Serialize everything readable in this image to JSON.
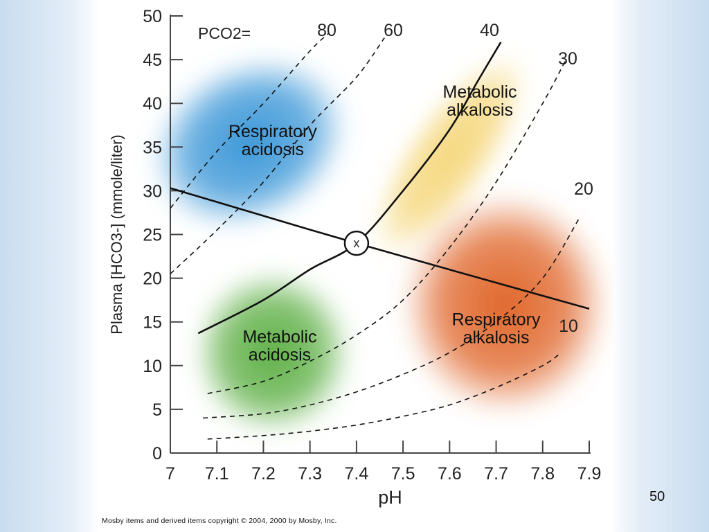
{
  "slide": {
    "number": "50",
    "copyright": "Mosby items and derived items copyright © 2004, 2000 by Mosby, Inc."
  },
  "chart_data": {
    "type": "line",
    "xlabel": "pH",
    "ylabel": "Plasma [HCO3-] (mmole/liter)",
    "xlim": [
      7.0,
      7.9
    ],
    "ylim": [
      0,
      50
    ],
    "xticks": [
      "7",
      "7.1",
      "7.2",
      "7.3",
      "7.4",
      "7.5",
      "7.6",
      "7.7",
      "7.8",
      "7.9"
    ],
    "yticks": [
      "0",
      "5",
      "10",
      "15",
      "20",
      "25",
      "30",
      "35",
      "40",
      "45",
      "50"
    ],
    "pco2_prefix": "PCO2=",
    "isobars": [
      {
        "name": "80",
        "style": "dashed",
        "points": [
          [
            7.0,
            28
          ],
          [
            7.1,
            34.5
          ],
          [
            7.2,
            40
          ],
          [
            7.3,
            46
          ],
          [
            7.34,
            48
          ]
        ]
      },
      {
        "name": "60",
        "style": "dashed",
        "points": [
          [
            7.0,
            20.5
          ],
          [
            7.1,
            25.5
          ],
          [
            7.2,
            31
          ],
          [
            7.3,
            37.5
          ],
          [
            7.4,
            43
          ],
          [
            7.46,
            47.5
          ]
        ]
      },
      {
        "name": "40",
        "style": "solid",
        "points": [
          [
            7.06,
            13.7
          ],
          [
            7.2,
            17.5
          ],
          [
            7.3,
            21
          ],
          [
            7.4,
            24
          ],
          [
            7.5,
            30
          ],
          [
            7.6,
            37
          ],
          [
            7.66,
            42.5
          ],
          [
            7.71,
            47
          ]
        ]
      },
      {
        "name": "30",
        "style": "dashed",
        "points": [
          [
            7.08,
            6.8
          ],
          [
            7.2,
            8.2
          ],
          [
            7.3,
            10.5
          ],
          [
            7.4,
            13.5
          ],
          [
            7.5,
            17.5
          ],
          [
            7.6,
            23.5
          ],
          [
            7.7,
            31
          ],
          [
            7.8,
            40
          ],
          [
            7.85,
            45
          ]
        ]
      },
      {
        "name": "20",
        "style": "dashed",
        "points": [
          [
            7.07,
            4
          ],
          [
            7.2,
            4.5
          ],
          [
            7.3,
            5.5
          ],
          [
            7.4,
            7
          ],
          [
            7.5,
            9
          ],
          [
            7.6,
            11.5
          ],
          [
            7.7,
            15
          ],
          [
            7.8,
            20
          ],
          [
            7.88,
            27
          ]
        ]
      },
      {
        "name": "10",
        "style": "dashed",
        "points": [
          [
            7.08,
            1.6
          ],
          [
            7.2,
            2
          ],
          [
            7.3,
            2.5
          ],
          [
            7.4,
            3.2
          ],
          [
            7.5,
            4.2
          ],
          [
            7.6,
            5.5
          ],
          [
            7.7,
            7.5
          ],
          [
            7.8,
            10
          ],
          [
            7.84,
            11.5
          ]
        ]
      }
    ],
    "buffer_line": {
      "points": [
        [
          7.0,
          30.3
        ],
        [
          7.4,
          24
        ],
        [
          7.9,
          16.5
        ]
      ]
    },
    "normal_point": {
      "label": "x",
      "ph": 7.4,
      "hco3": 24
    },
    "regions": [
      {
        "name": "Respiratory acidosis",
        "lines": [
          "Respiratory",
          "acidosis"
        ],
        "color": "#3b97d8",
        "center": [
          7.17,
          35.5
        ],
        "label_at": [
          7.22,
          35.5
        ]
      },
      {
        "name": "Metabolic alkalosis",
        "lines": [
          "Metabolic",
          "alkalosis"
        ],
        "color": "#f5d77c",
        "center": [
          7.6,
          34
        ],
        "label_at": [
          7.665,
          40
        ]
      },
      {
        "name": "Metabolic acidosis",
        "lines": [
          "Metabolic",
          "acidosis"
        ],
        "color": "#5fb047",
        "center": [
          7.22,
          11.5
        ],
        "label_at": [
          7.235,
          12
        ]
      },
      {
        "name": "Respiratory alkalosis",
        "lines": [
          "Respiratory",
          "alkalosis"
        ],
        "color": "#e0662a",
        "center": [
          7.72,
          17
        ],
        "label_at": [
          7.7,
          14
        ]
      }
    ]
  }
}
